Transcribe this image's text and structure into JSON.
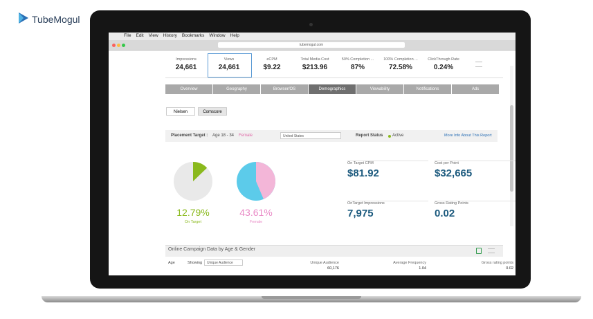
{
  "brand": "TubeMogul",
  "menu": [
    "File",
    "Edit",
    "View",
    "History",
    "Bookmarks",
    "Window",
    "Help"
  ],
  "url": "tubemogul.com",
  "metrics": [
    {
      "label": "Impressions",
      "value": "24,661"
    },
    {
      "label": "Views",
      "value": "24,661"
    },
    {
      "label": "eCPM",
      "value": "$9.22"
    },
    {
      "label": "Total Media Cost",
      "value": "$213.96"
    },
    {
      "label": "50% Completion ...",
      "value": "87%"
    },
    {
      "label": "100% Completion ...",
      "value": "72.58%"
    },
    {
      "label": "ClickThrough Rate",
      "value": "0.24%"
    }
  ],
  "tabs": [
    "Overview",
    "Geography",
    "Browser/OS",
    "Demographics",
    "Viewability",
    "Notifications",
    "Ads"
  ],
  "sources": [
    "Nielsen",
    "Comscore"
  ],
  "placement": {
    "label": "Placement Target :",
    "age": "Age 18 - 34",
    "gender": "Female",
    "country": "United States",
    "status_label": "Report Status",
    "status": "Active",
    "more_info": "More Info About This Report"
  },
  "pies": [
    {
      "value": 12.79,
      "label": "12.79%",
      "caption": "On Target",
      "color": "#8ab91d",
      "rest_color": "#e9e9e9"
    },
    {
      "value": 43.61,
      "label": "43.61%",
      "caption": "Female",
      "color": "#f3b6d8",
      "rest_color": "#5ccbea",
      "label_color": "#e98ac6"
    }
  ],
  "kpis": [
    {
      "label": "On Target CPM",
      "value": "$81.92"
    },
    {
      "label": "Cost per Point",
      "value": "$32,665"
    },
    {
      "label": "OnTarget Impressions",
      "value": "7,975"
    },
    {
      "label": "Gross Rating Points",
      "value": "0.02"
    }
  ],
  "table": {
    "title": "Online Campaign Data by Age & Gender",
    "age": "Age",
    "showing": "Showing",
    "selector": "Unique Audience",
    "columns": [
      {
        "label": "Unique Audience",
        "value": "60,176"
      },
      {
        "label": "Average Frequency",
        "value": "1.04"
      },
      {
        "label": "Gross rating points",
        "value": "0.02"
      }
    ]
  }
}
